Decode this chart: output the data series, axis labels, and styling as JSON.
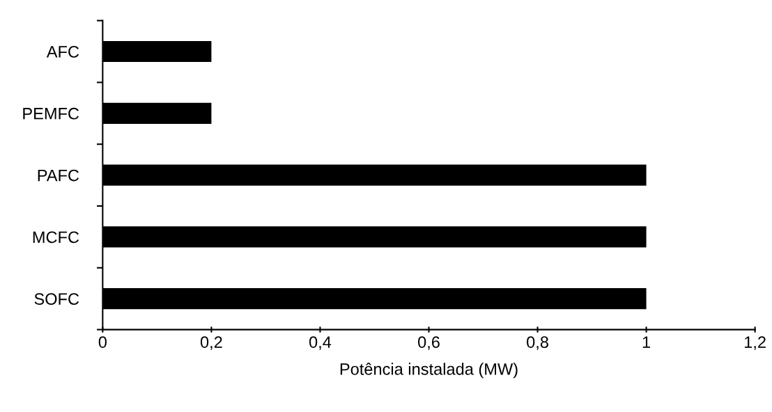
{
  "chart_data": {
    "type": "bar",
    "orientation": "horizontal",
    "xlabel": "Potência instalada (MW)",
    "categories": [
      "AFC",
      "PEMFC",
      "PAFC",
      "MCFC",
      "SOFC"
    ],
    "values": [
      0.2,
      0.2,
      1,
      1,
      1
    ],
    "color": "#000000",
    "xlim": [
      0,
      1.2
    ],
    "xticks": [
      0,
      {
        "value": 0.2,
        "label": "0,2"
      },
      {
        "value": 0.4,
        "label": "0,4"
      },
      {
        "value": 0.6,
        "label": "0,6"
      },
      {
        "value": 0.8,
        "label": "0,8"
      },
      1,
      {
        "value": 1.2,
        "label": "1,2"
      }
    ],
    "grid": false,
    "legend": false
  }
}
